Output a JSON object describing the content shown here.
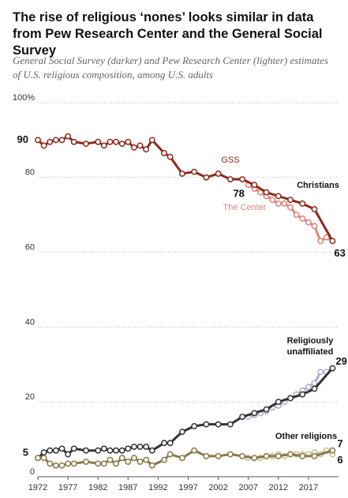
{
  "chart_data": {
    "type": "line",
    "title": "The rise of religious ‘nones’ looks similar in data from Pew Research Center and the General Social Survey",
    "subtitle": "General Social Survey (darker) and Pew Research Center (lighter) estimates of U.S. religious composition, among U.S. adults",
    "xlim": [
      1972,
      2022
    ],
    "xticks": [
      1972,
      1977,
      1982,
      1987,
      1992,
      1997,
      2002,
      2007,
      2012,
      2017
    ],
    "ylim": [
      0,
      100
    ],
    "yticks": [
      0,
      20,
      40,
      60,
      80,
      {
        "value": 100,
        "label": "100%"
      }
    ],
    "grid": true,
    "groups": [
      {
        "name": "Christians",
        "series": [
          {
            "name": "GSS",
            "color": "#8b2a1e",
            "x": [
              1972,
              1973,
              1974,
              1975,
              1976,
              1977,
              1978,
              1980,
              1982,
              1983,
              1984,
              1985,
              1986,
              1987,
              1988,
              1989,
              1990,
              1991,
              1993,
              1994,
              1996,
              1998,
              2000,
              2002,
              2004,
              2006,
              2008,
              2010,
              2012,
              2014,
              2016,
              2018,
              2021
            ],
            "values": [
              90,
              88.5,
              89.5,
              90,
              90,
              91,
              89.5,
              89,
              89.5,
              88.5,
              89.5,
              89.5,
              89,
              89.5,
              88,
              88.5,
              87.5,
              90,
              86.5,
              85.5,
              81,
              81.5,
              80,
              81,
              79.5,
              79.5,
              78,
              76,
              75,
              74,
              73,
              71.5,
              63
            ],
            "value_labels": [
              "90",
              null,
              null,
              null,
              null,
              null,
              null,
              null,
              null,
              null,
              null,
              null,
              null,
              null,
              null,
              null,
              null,
              null,
              null,
              null,
              null,
              null,
              null,
              null,
              null,
              null,
              null,
              null,
              null,
              null,
              null,
              null,
              "63"
            ]
          },
          {
            "name": "The Center",
            "color": "#e0847a",
            "x": [
              2007,
              2008,
              2009,
              2010,
              2011,
              2012,
              2013,
              2014,
              2015,
              2016,
              2017,
              2018,
              2019,
              2020,
              2021
            ],
            "values": [
              78,
              77,
              76,
              75,
              74,
              73,
              73,
              72,
              70,
              69,
              68,
              67,
              63,
              64,
              63
            ],
            "value_labels": [
              "78",
              null,
              null,
              null,
              null,
              null,
              null,
              null,
              null,
              null,
              null,
              null,
              null,
              null,
              null
            ]
          }
        ]
      },
      {
        "name": "Religiously unaffiliated",
        "series": [
          {
            "color": "#333333",
            "x": [
              1972,
              1973,
              1974,
              1975,
              1976,
              1977,
              1978,
              1980,
              1982,
              1983,
              1984,
              1985,
              1986,
              1987,
              1988,
              1989,
              1990,
              1991,
              1993,
              1994,
              1996,
              1998,
              2000,
              2002,
              2004,
              2006,
              2008,
              2010,
              2012,
              2014,
              2016,
              2018,
              2021
            ],
            "values": [
              5,
              6.5,
              7,
              7,
              7.5,
              6,
              7.5,
              7,
              7,
              7.5,
              7,
              7,
              7,
              7.5,
              8,
              8,
              8,
              7,
              9,
              9,
              12,
              13.5,
              14,
              14,
              14,
              16,
              17,
              18,
              20,
              21,
              22,
              23.5,
              29
            ],
            "value_labels": [
              "5",
              null,
              null,
              null,
              null,
              null,
              null,
              null,
              null,
              null,
              null,
              null,
              null,
              null,
              null,
              null,
              null,
              null,
              null,
              null,
              null,
              null,
              null,
              null,
              null,
              null,
              null,
              null,
              null,
              null,
              null,
              null,
              "29"
            ]
          },
          {
            "color": "#b5adc8",
            "x": [
              2007,
              2008,
              2009,
              2010,
              2011,
              2012,
              2013,
              2014,
              2015,
              2016,
              2017,
              2018,
              2019,
              2020,
              2021
            ],
            "values": [
              16,
              16.5,
              17,
              17.5,
              18.5,
              19,
              20,
              21,
              22,
              23,
              24,
              25,
              28,
              28,
              29
            ]
          }
        ]
      },
      {
        "name": "Other religions",
        "series": [
          {
            "color": "#8a7a4a",
            "x": [
              1972,
              1973,
              1974,
              1975,
              1976,
              1977,
              1978,
              1980,
              1982,
              1983,
              1984,
              1985,
              1986,
              1987,
              1988,
              1989,
              1990,
              1991,
              1993,
              1994,
              1996,
              1998,
              2000,
              2002,
              2004,
              2006,
              2008,
              2010,
              2012,
              2014,
              2016,
              2018,
              2021
            ],
            "values": [
              5,
              5,
              3.5,
              3,
              3,
              3.5,
              3.5,
              4,
              3.5,
              3.5,
              4.5,
              3.5,
              5,
              4,
              5,
              4,
              4.5,
              3,
              4.5,
              6,
              5,
              7,
              5.5,
              5.5,
              6,
              5.5,
              5,
              5.5,
              5.5,
              6,
              5.5,
              5.5,
              7
            ],
            "value_labels": [
              null,
              null,
              null,
              null,
              null,
              null,
              null,
              null,
              null,
              null,
              null,
              null,
              null,
              null,
              null,
              null,
              null,
              null,
              null,
              null,
              null,
              null,
              null,
              null,
              null,
              null,
              null,
              null,
              null,
              null,
              null,
              null,
              "7"
            ]
          },
          {
            "color": "#c8be95",
            "x": [
              2007,
              2008,
              2009,
              2010,
              2011,
              2012,
              2013,
              2014,
              2015,
              2016,
              2017,
              2018,
              2019,
              2020,
              2021
            ],
            "values": [
              5,
              5,
              5,
              5.5,
              5.5,
              6,
              5.5,
              6,
              6,
              6,
              6,
              6.5,
              6,
              7,
              6
            ],
            "value_labels": [
              null,
              null,
              null,
              null,
              null,
              null,
              null,
              null,
              null,
              null,
              null,
              null,
              null,
              null,
              "6"
            ]
          }
        ]
      }
    ]
  }
}
